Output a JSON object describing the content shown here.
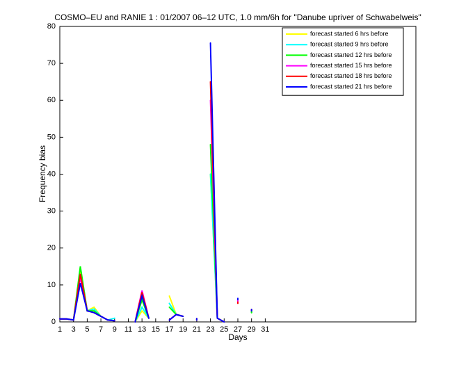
{
  "chart_data": {
    "type": "line",
    "title": "COSMO–EU and RANIE 1 : 01/2007 06–12 UTC, 1.0 mm/6h for \"Danube upriver of Schwabelweis\"",
    "x_label": "Days",
    "y_label": "Frequency bias",
    "x": [
      1,
      2,
      3,
      4,
      5,
      6,
      7,
      8,
      9,
      10,
      11,
      12,
      13,
      14,
      15,
      16,
      17,
      18,
      19,
      20,
      21,
      22,
      23,
      24,
      25,
      26,
      27,
      28,
      29,
      30,
      31
    ],
    "xlim": [
      1,
      53
    ],
    "xticks": [
      1,
      3,
      5,
      7,
      9,
      11,
      13,
      15,
      17,
      19,
      21,
      23,
      25,
      27,
      29,
      31
    ],
    "ylim": [
      0,
      80
    ],
    "yticks": [
      0,
      10,
      20,
      30,
      40,
      50,
      60,
      70,
      80
    ],
    "legend": "top-right",
    "series": [
      {
        "name": "forecast started 6 hrs before",
        "color": "#ffff00",
        "values": [
          0.8,
          0.8,
          0.5,
          14,
          3,
          4,
          1.5,
          0.5,
          0.3,
          null,
          null,
          0,
          3,
          1,
          null,
          null,
          7,
          2,
          1.5,
          null,
          0.5,
          null,
          40,
          1,
          0,
          null,
          5.5,
          null,
          2.5,
          null,
          null
        ]
      },
      {
        "name": "forecast started 9 hrs before",
        "color": "#00ffff",
        "values": [
          0.8,
          0.8,
          0.5,
          13,
          3,
          3.5,
          1.5,
          0.5,
          1,
          null,
          null,
          0,
          4,
          1,
          null,
          null,
          5,
          2,
          1.5,
          null,
          0.5,
          null,
          40,
          1,
          0,
          null,
          5.5,
          null,
          2.5,
          null,
          null
        ]
      },
      {
        "name": "forecast started 12 hrs before",
        "color": "#00ff00",
        "values": [
          0.8,
          0.8,
          0.5,
          15,
          3,
          3,
          1.5,
          0.5,
          0.3,
          null,
          null,
          0,
          6,
          1,
          null,
          null,
          4,
          2,
          1.5,
          null,
          0.5,
          null,
          48,
          1,
          0,
          null,
          5.5,
          null,
          2.5,
          null,
          null
        ]
      },
      {
        "name": "forecast started 15 hrs before",
        "color": "#ff00ff",
        "values": [
          0.8,
          0.8,
          0.5,
          12,
          3,
          2.5,
          1.5,
          0.5,
          0.3,
          null,
          null,
          0,
          8.5,
          1,
          null,
          null,
          0.5,
          2,
          1.5,
          null,
          0.5,
          null,
          60,
          1,
          0,
          null,
          5.5,
          null,
          3,
          null,
          null
        ]
      },
      {
        "name": "forecast started 18 hrs before",
        "color": "#ff0000",
        "values": [
          0.8,
          0.8,
          0.5,
          13,
          3,
          2.5,
          1.5,
          0.5,
          0.3,
          null,
          null,
          0,
          8,
          1,
          null,
          null,
          0.5,
          2,
          1.5,
          null,
          0.5,
          null,
          65,
          1,
          0,
          null,
          5,
          null,
          3,
          null,
          null
        ]
      },
      {
        "name": "forecast started 21 hrs before",
        "color": "#0000ff",
        "values": [
          0.8,
          0.8,
          0.5,
          10.5,
          3,
          2.5,
          1.5,
          0.5,
          0.3,
          null,
          null,
          0,
          7,
          1,
          null,
          null,
          0.5,
          2,
          1.5,
          null,
          0.5,
          null,
          75.5,
          1,
          0,
          null,
          6,
          null,
          3,
          null,
          null
        ]
      }
    ]
  }
}
